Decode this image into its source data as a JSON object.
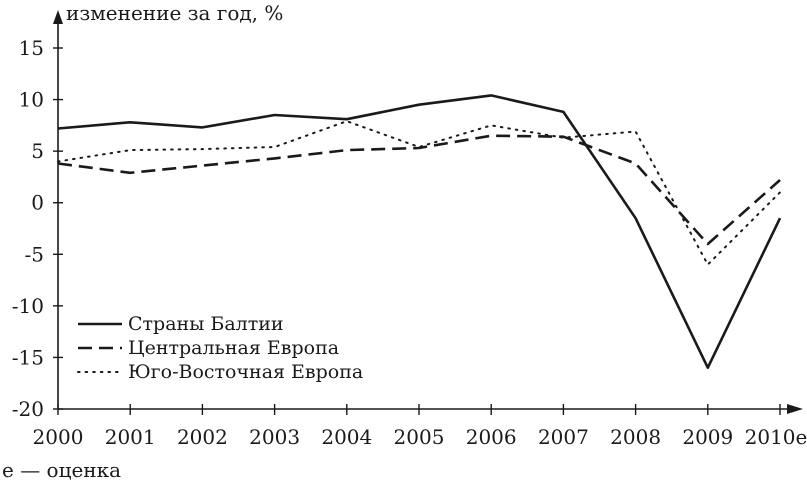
{
  "chart_data": {
    "type": "line",
    "title": "",
    "ylabel": "изменение за год, %",
    "xlabel": "",
    "categories": [
      "2000",
      "2001",
      "2002",
      "2003",
      "2004",
      "2005",
      "2006",
      "2007",
      "2008",
      "2009",
      "2010e"
    ],
    "ylim": [
      -20,
      15
    ],
    "yticks": [
      15,
      10,
      5,
      0,
      -5,
      -10,
      -15,
      -20
    ],
    "ytick_labels": [
      "15",
      "10",
      "5",
      "0",
      "-5",
      "-10",
      "-15",
      "-20"
    ],
    "grid": false,
    "legend_position": "bottom-left",
    "series": [
      {
        "name": "Страны Балтии",
        "style": "solid",
        "values": [
          7.2,
          7.8,
          7.3,
          8.5,
          8.1,
          9.5,
          10.4,
          8.8,
          -1.5,
          -16.0,
          -1.5
        ]
      },
      {
        "name": "Центральная Европа",
        "style": "dashed",
        "values": [
          3.8,
          2.9,
          3.6,
          4.3,
          5.1,
          5.3,
          6.5,
          6.4,
          3.8,
          -4.0,
          2.2
        ]
      },
      {
        "name": "Юго-Восточная Европа",
        "style": "dotted",
        "values": [
          4.0,
          5.1,
          5.2,
          5.4,
          7.9,
          5.4,
          7.5,
          6.3,
          6.9,
          -6.0,
          1.0
        ]
      }
    ],
    "footnote": "e — оценка"
  },
  "colors": {
    "line": "#1a1a1a",
    "background": "#ffffff"
  }
}
